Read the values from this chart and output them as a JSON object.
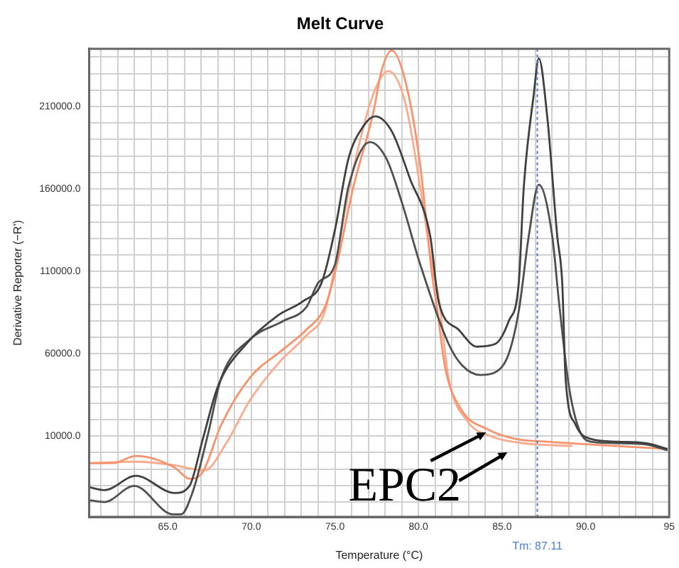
{
  "chart_data": {
    "type": "line",
    "title": "Melt Curve",
    "xlabel": "Temperature (°C)",
    "ylabel": "Derivative Reporter (−R')",
    "xlim": [
      60.3,
      95
    ],
    "xticks": [
      {
        "value": 61,
        "label": null
      },
      {
        "value": 62,
        "label": null
      },
      {
        "value": 63,
        "label": null
      },
      {
        "value": 64,
        "label": null
      },
      {
        "value": 65,
        "label": "65.0"
      },
      {
        "value": 66,
        "label": null
      },
      {
        "value": 67,
        "label": null
      },
      {
        "value": 68,
        "label": null
      },
      {
        "value": 69,
        "label": null
      },
      {
        "value": 70,
        "label": "70.0"
      },
      {
        "value": 71,
        "label": null
      },
      {
        "value": 72,
        "label": null
      },
      {
        "value": 73,
        "label": null
      },
      {
        "value": 74,
        "label": null
      },
      {
        "value": 75,
        "label": "75.0"
      },
      {
        "value": 76,
        "label": null
      },
      {
        "value": 77,
        "label": null
      },
      {
        "value": 78,
        "label": null
      },
      {
        "value": 79,
        "label": null
      },
      {
        "value": 80,
        "label": "80.0"
      },
      {
        "value": 81,
        "label": null
      },
      {
        "value": 82,
        "label": null
      },
      {
        "value": 83,
        "label": null
      },
      {
        "value": 84,
        "label": null
      },
      {
        "value": 85,
        "label": "85.0"
      },
      {
        "value": 86,
        "label": null
      },
      {
        "value": 87,
        "label": null
      },
      {
        "value": 88,
        "label": null
      },
      {
        "value": 89,
        "label": null
      },
      {
        "value": 90,
        "label": "90.0"
      },
      {
        "value": 91,
        "label": null
      },
      {
        "value": 92,
        "label": null
      },
      {
        "value": 93,
        "label": null
      },
      {
        "value": 94,
        "label": null
      },
      {
        "value": 95,
        "label": "95"
      }
    ],
    "ylim": [
      -39000,
      245000
    ],
    "yticks": [
      {
        "value": -30000,
        "label": null
      },
      {
        "value": -20000,
        "label": null
      },
      {
        "value": -10000,
        "label": null
      },
      {
        "value": 0,
        "label": null
      },
      {
        "value": 10000,
        "label": "10000.0"
      },
      {
        "value": 20000,
        "label": null
      },
      {
        "value": 30000,
        "label": null
      },
      {
        "value": 40000,
        "label": null
      },
      {
        "value": 50000,
        "label": null
      },
      {
        "value": 60000,
        "label": "60000.0"
      },
      {
        "value": 70000,
        "label": null
      },
      {
        "value": 80000,
        "label": null
      },
      {
        "value": 90000,
        "label": null
      },
      {
        "value": 100000,
        "label": null
      },
      {
        "value": 110000,
        "label": "110000.0"
      },
      {
        "value": 120000,
        "label": null
      },
      {
        "value": 130000,
        "label": null
      },
      {
        "value": 140000,
        "label": null
      },
      {
        "value": 150000,
        "label": null
      },
      {
        "value": 160000,
        "label": "160000.0"
      },
      {
        "value": 170000,
        "label": null
      },
      {
        "value": 180000,
        "label": null
      },
      {
        "value": 190000,
        "label": null
      },
      {
        "value": 200000,
        "label": null
      },
      {
        "value": 210000,
        "label": "210000.0"
      },
      {
        "value": 220000,
        "label": null
      },
      {
        "value": 230000,
        "label": null
      },
      {
        "value": 240000,
        "label": null
      }
    ],
    "grid": true,
    "marker": "none",
    "line_style": "solid",
    "series": [
      {
        "color": "#404040",
        "x": [
          60.3,
          61.2,
          63.1,
          65.4,
          66.3,
          67.1,
          68.0,
          69.7,
          71.6,
          73.1,
          74.2,
          75.0,
          75.8,
          76.7,
          77.4,
          78.4,
          79.5,
          80.7,
          81.2,
          82.4,
          83.5,
          84.6,
          85.4,
          86.0,
          86.3,
          86.9,
          87.2,
          87.7,
          88.3,
          88.6,
          88.8,
          89.4,
          90.3,
          91.9,
          93.6,
          94.9
        ],
        "values": [
          -21000,
          -22800,
          -14100,
          -24500,
          -20200,
          8300,
          40200,
          66000,
          83300,
          91900,
          103000,
          135000,
          178000,
          198000,
          204000,
          195000,
          166000,
          131500,
          91900,
          74600,
          64300,
          66000,
          79800,
          103000,
          161000,
          217700,
          239300,
          204000,
          131500,
          103000,
          45300,
          16900,
          8300,
          6600,
          5700,
          2200
        ]
      },
      {
        "color": "#505050",
        "x": [
          60.3,
          61.2,
          63.0,
          65.3,
          65.8,
          66.5,
          67.4,
          68.2,
          69.9,
          71.9,
          73.3,
          74.0,
          75.0,
          75.8,
          77.1,
          78.1,
          79.0,
          80.1,
          81.8,
          82.6,
          83.7,
          84.6,
          85.4,
          86.0,
          86.6,
          87.2,
          88.0,
          88.4,
          89.0,
          89.6,
          90.3,
          91.9,
          93.6,
          94.9
        ],
        "values": [
          -28800,
          -30000,
          -20200,
          -37400,
          -37400,
          -23600,
          10900,
          45300,
          68600,
          79800,
          88400,
          103000,
          114000,
          160900,
          188400,
          178000,
          152000,
          114300,
          66000,
          53100,
          47100,
          48800,
          60000,
          85900,
          131500,
          162600,
          131500,
          91900,
          40200,
          14300,
          6600,
          5700,
          5000,
          1400
        ]
      },
      {
        "color": "#f7926c",
        "x": [
          60.3,
          61.7,
          63.1,
          65.4,
          66.3,
          67.1,
          68.2,
          69.9,
          71.9,
          73.3,
          74.4,
          75.0,
          76.1,
          77.3,
          77.8,
          78.4,
          79.2,
          80.1,
          80.8,
          81.1,
          81.6,
          82.6,
          84.1,
          85.8,
          87.7,
          90.5,
          94.9
        ],
        "values": [
          -6400,
          -6400,
          -2000,
          -9000,
          -15900,
          -11600,
          16900,
          45300,
          62600,
          74600,
          88400,
          109000,
          161000,
          206500,
          232000,
          244000,
          226000,
          174600,
          109000,
          88400,
          51400,
          25500,
          14300,
          8300,
          6600,
          4800,
          2200
        ]
      },
      {
        "color": "#f9ab8c",
        "x": [
          60.3,
          63.1,
          65.1,
          67.2,
          68.5,
          69.9,
          71.6,
          73.3,
          74.4,
          76.1,
          77.3,
          78.2,
          79.2,
          80.2,
          80.8,
          81.2,
          81.8,
          82.9,
          84.3,
          86.3,
          89.2
        ],
        "values": [
          -6400,
          -5500,
          -7200,
          -10700,
          5700,
          31500,
          54000,
          71200,
          85900,
          172000,
          217700,
          231500,
          212600,
          154800,
          114300,
          94500,
          45300,
          19500,
          10000,
          5700,
          4000
        ]
      }
    ],
    "ref_lines": [
      {
        "axis": "x",
        "value": 87.11,
        "label": "Tm: 87.11",
        "color": "#4a7fd8",
        "line_style": "dotted"
      }
    ],
    "annotations": [
      {
        "text": "EPC2",
        "x": 84.3,
        "y": 14000
      }
    ]
  }
}
